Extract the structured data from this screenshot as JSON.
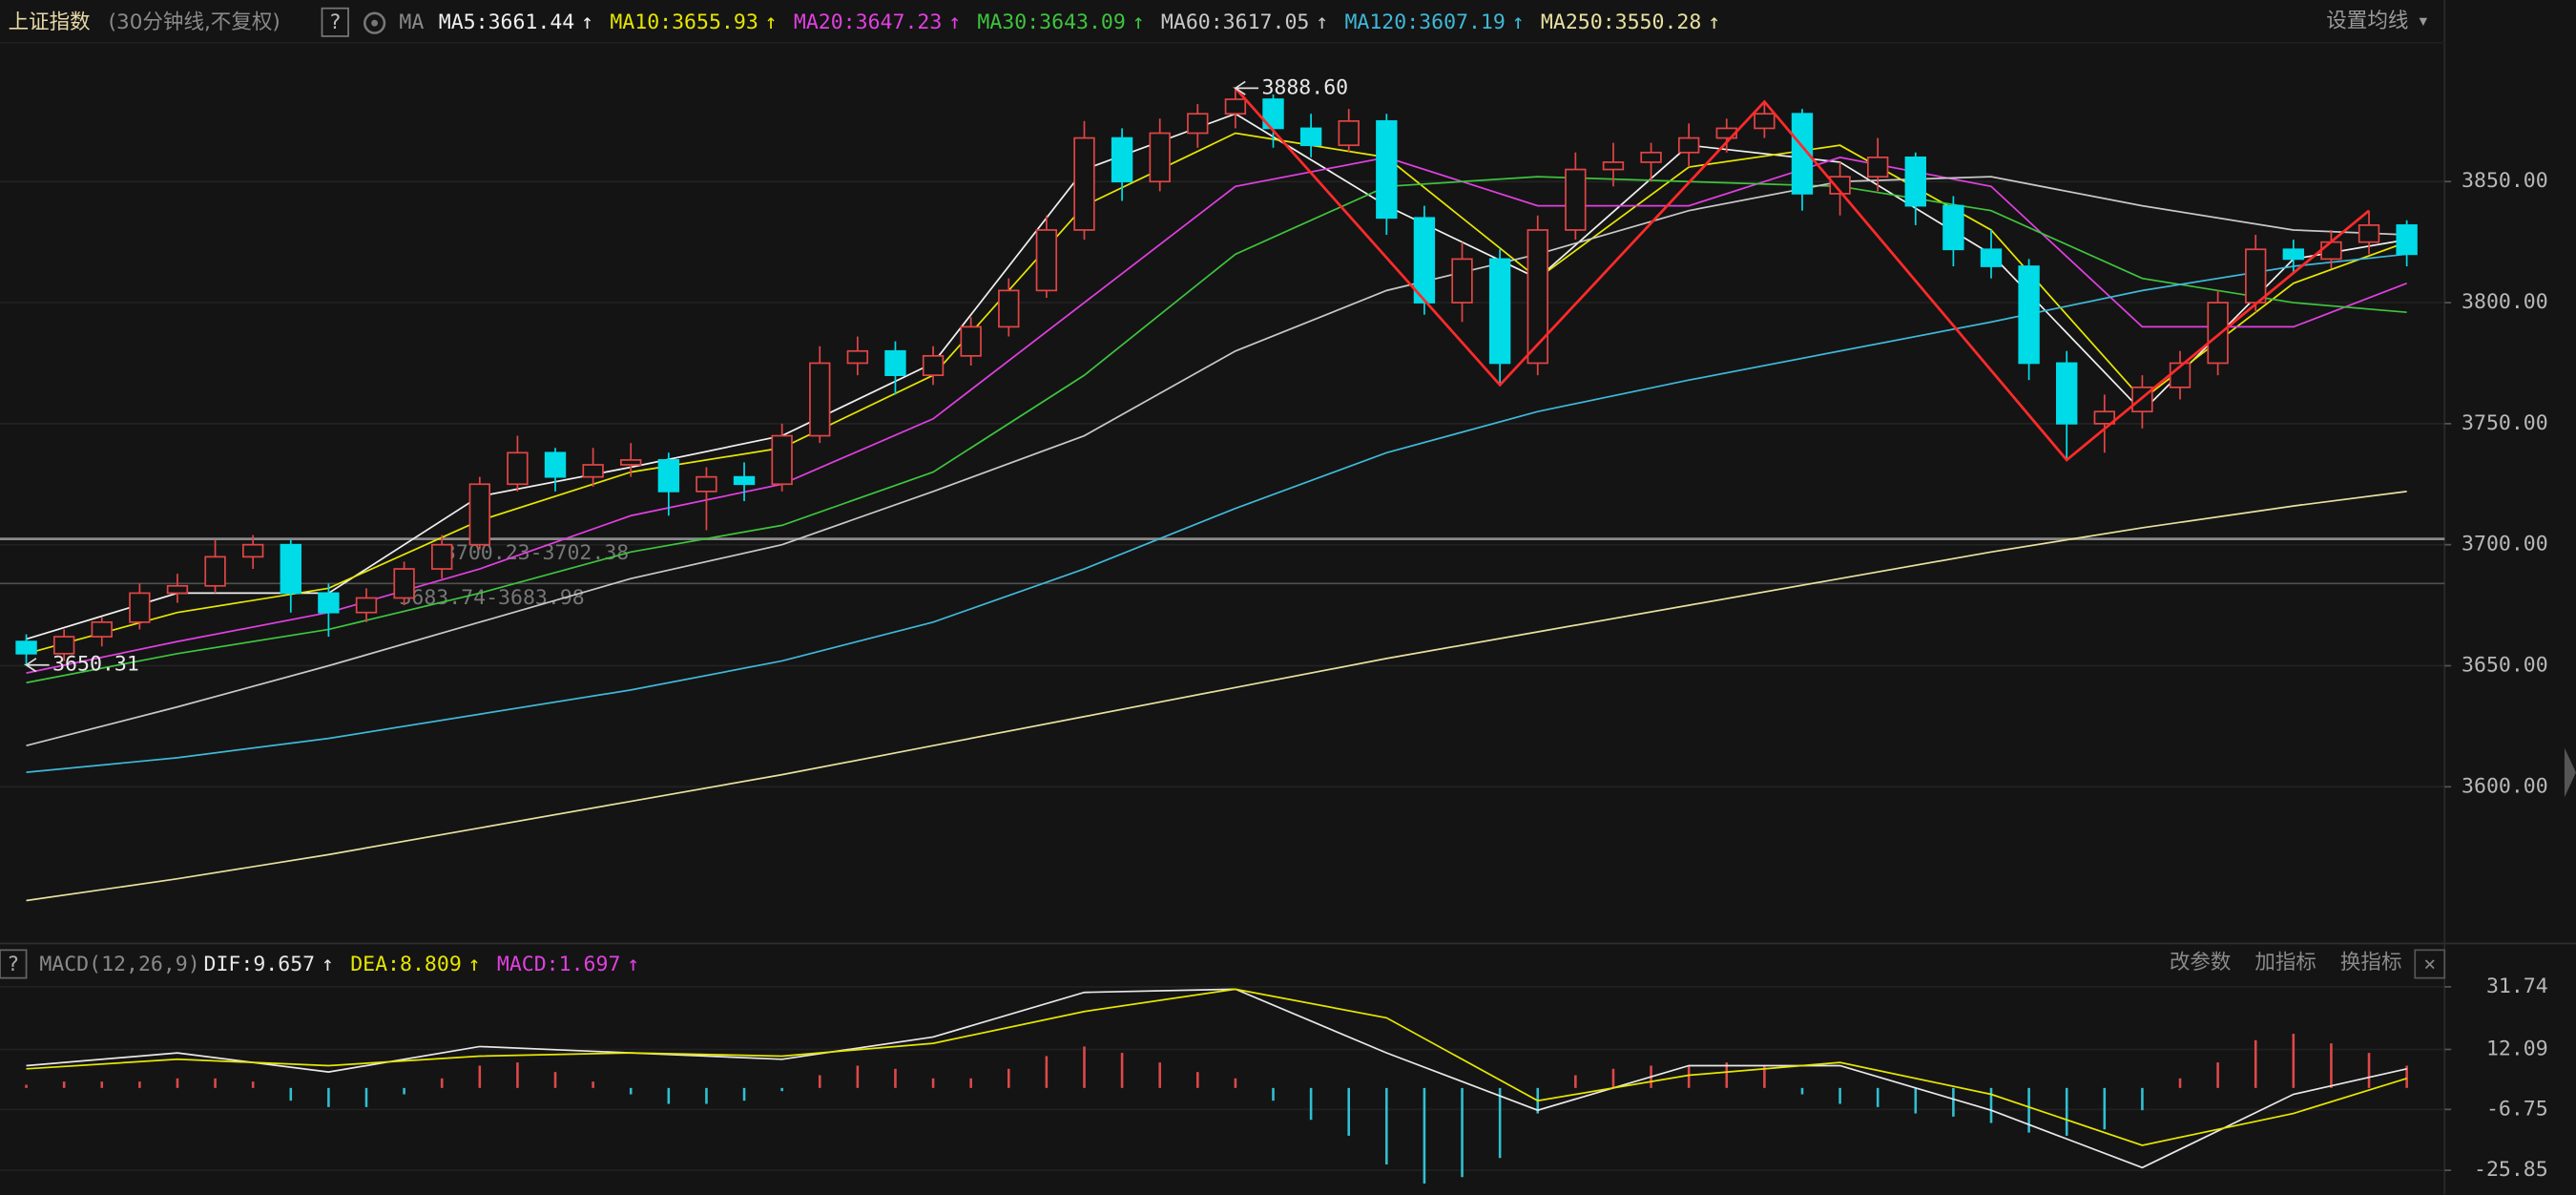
{
  "header": {
    "title": "上证指数",
    "subtitle": "(30分钟线,不复权)",
    "help": "?",
    "ma_label": "MA",
    "settings": "设置均线",
    "settings_arrow": "▾"
  },
  "price_panel": {
    "ylim": [
      3538,
      3908
    ],
    "yticks": [
      {
        "value": 3850,
        "label": "3850.00"
      },
      {
        "value": 3800,
        "label": "3800.00"
      },
      {
        "value": 3750,
        "label": "3750.00"
      },
      {
        "value": 3700,
        "label": "3700.00"
      },
      {
        "value": 3650,
        "label": "3650.00"
      },
      {
        "value": 3600,
        "label": "3600.00"
      }
    ],
    "up_color": "#e04545",
    "down_color": "#00dbe8",
    "candles": [
      [
        3660,
        3663,
        3650.31,
        3655
      ],
      [
        3655,
        3665,
        3652,
        3662
      ],
      [
        3662,
        3670,
        3658,
        3668
      ],
      [
        3668,
        3684,
        3665,
        3680
      ],
      [
        3680,
        3688,
        3676,
        3683
      ],
      [
        3683,
        3702,
        3680,
        3695
      ],
      [
        3695,
        3704,
        3690,
        3700
      ],
      [
        3700,
        3702,
        3672,
        3680
      ],
      [
        3680,
        3684,
        3662,
        3672
      ],
      [
        3672,
        3682,
        3668,
        3678
      ],
      [
        3678,
        3693,
        3675,
        3690
      ],
      [
        3690,
        3704,
        3686,
        3700
      ],
      [
        3700,
        3728,
        3698,
        3725
      ],
      [
        3725,
        3745,
        3722,
        3738
      ],
      [
        3738,
        3740,
        3722,
        3728
      ],
      [
        3728,
        3740,
        3724,
        3733
      ],
      [
        3733,
        3742,
        3728,
        3735
      ],
      [
        3735,
        3738,
        3712,
        3722
      ],
      [
        3722,
        3732,
        3706,
        3728
      ],
      [
        3728,
        3734,
        3718,
        3725
      ],
      [
        3725,
        3750,
        3722,
        3745
      ],
      [
        3745,
        3782,
        3742,
        3775
      ],
      [
        3775,
        3786,
        3770,
        3780
      ],
      [
        3780,
        3784,
        3762,
        3770
      ],
      [
        3770,
        3782,
        3766,
        3778
      ],
      [
        3778,
        3794,
        3774,
        3790
      ],
      [
        3790,
        3810,
        3786,
        3805
      ],
      [
        3805,
        3836,
        3802,
        3830
      ],
      [
        3830,
        3875,
        3826,
        3868
      ],
      [
        3868,
        3872,
        3842,
        3850
      ],
      [
        3850,
        3876,
        3846,
        3870
      ],
      [
        3870,
        3882,
        3864,
        3878
      ],
      [
        3878,
        3888.6,
        3872,
        3884
      ],
      [
        3884,
        3886,
        3864,
        3872
      ],
      [
        3872,
        3878,
        3860,
        3865
      ],
      [
        3865,
        3880,
        3862,
        3875
      ],
      [
        3875,
        3878,
        3828,
        3835
      ],
      [
        3835,
        3840,
        3795,
        3800
      ],
      [
        3800,
        3825,
        3792,
        3818
      ],
      [
        3818,
        3822,
        3766,
        3775
      ],
      [
        3775,
        3836,
        3770,
        3830
      ],
      [
        3830,
        3862,
        3826,
        3855
      ],
      [
        3855,
        3866,
        3848,
        3858
      ],
      [
        3858,
        3866,
        3850,
        3862
      ],
      [
        3862,
        3874,
        3856,
        3868
      ],
      [
        3868,
        3876,
        3862,
        3872
      ],
      [
        3872,
        3883,
        3868,
        3878
      ],
      [
        3878,
        3880,
        3838,
        3845
      ],
      [
        3845,
        3858,
        3836,
        3852
      ],
      [
        3852,
        3868,
        3846,
        3860
      ],
      [
        3860,
        3862,
        3832,
        3840
      ],
      [
        3840,
        3844,
        3815,
        3822
      ],
      [
        3822,
        3830,
        3810,
        3815
      ],
      [
        3815,
        3818,
        3768,
        3775
      ],
      [
        3775,
        3780,
        3735,
        3750
      ],
      [
        3750,
        3762,
        3738,
        3755
      ],
      [
        3755,
        3770,
        3748,
        3765
      ],
      [
        3765,
        3780,
        3760,
        3775
      ],
      [
        3775,
        3805,
        3770,
        3800
      ],
      [
        3800,
        3828,
        3796,
        3822
      ],
      [
        3822,
        3826,
        3812,
        3818
      ],
      [
        3818,
        3830,
        3814,
        3825
      ],
      [
        3825,
        3838,
        3820,
        3832
      ],
      [
        3832,
        3834,
        3815,
        3820
      ]
    ],
    "ma_x": [
      0,
      4,
      8,
      12,
      16,
      20,
      24,
      28,
      32,
      36,
      40,
      44,
      48,
      52,
      56,
      60,
      63
    ],
    "ma": [
      {
        "label": "MA5:3661.44",
        "arrow": "↑",
        "color": "#f0f0f0",
        "values": [
          3661,
          3680,
          3680,
          3720,
          3732,
          3745,
          3775,
          3855,
          3878,
          3840,
          3810,
          3865,
          3858,
          3820,
          3755,
          3818,
          3826
        ]
      },
      {
        "label": "MA10:3655.93",
        "arrow": "↑",
        "color": "#e6e600",
        "values": [
          3655,
          3672,
          3682,
          3710,
          3730,
          3740,
          3770,
          3840,
          3870,
          3860,
          3810,
          3856,
          3865,
          3830,
          3760,
          3808,
          3825
        ]
      },
      {
        "label": "MA20:3647.23",
        "arrow": "↑",
        "color": "#e040e0",
        "values": [
          3647,
          3660,
          3672,
          3690,
          3712,
          3725,
          3752,
          3800,
          3848,
          3860,
          3840,
          3840,
          3860,
          3848,
          3790,
          3790,
          3808
        ]
      },
      {
        "label": "MA30:3643.09",
        "arrow": "↑",
        "color": "#3ec43e",
        "values": [
          3643,
          3655,
          3665,
          3680,
          3697,
          3708,
          3730,
          3770,
          3820,
          3848,
          3852,
          3850,
          3848,
          3838,
          3810,
          3800,
          3796
        ]
      },
      {
        "label": "MA60:3617.05",
        "arrow": "↑",
        "color": "#c8c8c8",
        "values": [
          3617,
          3633,
          3650,
          3668,
          3686,
          3700,
          3722,
          3745,
          3780,
          3805,
          3820,
          3838,
          3850,
          3852,
          3840,
          3830,
          3828
        ]
      },
      {
        "label": "MA120:3607.19",
        "arrow": "↑",
        "color": "#3fb8d8",
        "values": [
          3606,
          3612,
          3620,
          3630,
          3640,
          3652,
          3668,
          3690,
          3715,
          3738,
          3755,
          3768,
          3780,
          3792,
          3805,
          3815,
          3820
        ]
      },
      {
        "label": "MA250:3550.28",
        "arrow": "↑",
        "color": "#e8e0a0",
        "values": [
          3553,
          3562,
          3572,
          3583,
          3594,
          3605,
          3617,
          3629,
          3641,
          3653,
          3664,
          3675,
          3686,
          3697,
          3707,
          3716,
          3722
        ]
      }
    ],
    "zigzag": {
      "color": "#ff2a2a",
      "x": [
        32,
        39,
        46,
        54,
        62
      ],
      "values": [
        3888.6,
        3766,
        3883,
        3735,
        3838
      ]
    },
    "levels": [
      {
        "label": "3700.23-3702.38",
        "value": 3702.38
      },
      {
        "label": "3683.74-3683.98",
        "value": 3683.98
      }
    ],
    "annotations": [
      {
        "label": "3888.60",
        "x": 32,
        "value": 3888.6
      },
      {
        "label": "3650.31",
        "x": 0,
        "value": 3650.31
      }
    ]
  },
  "macd_panel": {
    "help": "?",
    "title": "MACD(12,26,9)",
    "ylim": [
      -31,
      34
    ],
    "yticks": [
      31.74,
      12.09,
      -6.75,
      -25.85
    ],
    "up_color": "#e04848",
    "down_color": "#30c0d0",
    "histogram": [
      1,
      2,
      2,
      2,
      3,
      3,
      2,
      -4,
      -6,
      -6,
      -2,
      3,
      7,
      8,
      5,
      2,
      -2,
      -5,
      -5,
      -4,
      -1,
      4,
      7,
      6,
      3,
      3,
      6,
      10,
      13,
      11,
      8,
      5,
      3,
      -4,
      -10,
      -15,
      -24,
      -30,
      -28,
      -22,
      -8,
      4,
      6,
      7,
      7,
      8,
      7,
      -2,
      -5,
      -6,
      -8,
      -9,
      -11,
      -14,
      -15,
      -13,
      -7,
      3,
      8,
      15,
      17,
      14,
      11,
      7
    ],
    "lines_x": [
      0,
      4,
      8,
      12,
      16,
      20,
      24,
      28,
      32,
      36,
      40,
      44,
      48,
      52,
      56,
      60,
      63
    ],
    "lines": [
      {
        "label": "DIF:9.657",
        "arrow": "↑",
        "color": "#e8e8e8",
        "values": [
          7,
          11,
          5,
          13,
          11,
          9,
          16,
          30,
          31,
          11,
          -7,
          7,
          7,
          -7,
          -25,
          -2,
          6
        ]
      },
      {
        "label": "DEA:8.809",
        "arrow": "↑",
        "color": "#e6e600",
        "values": [
          6,
          9,
          7,
          10,
          11,
          10,
          14,
          24,
          31,
          22,
          -4,
          4,
          8,
          -2,
          -18,
          -8,
          3
        ]
      }
    ],
    "macd_label": {
      "label": "MACD:1.697",
      "arrow": "↑",
      "color": "#e040e0"
    },
    "buttons": [
      "改参数",
      "加指标",
      "换指标"
    ],
    "close": "×"
  }
}
